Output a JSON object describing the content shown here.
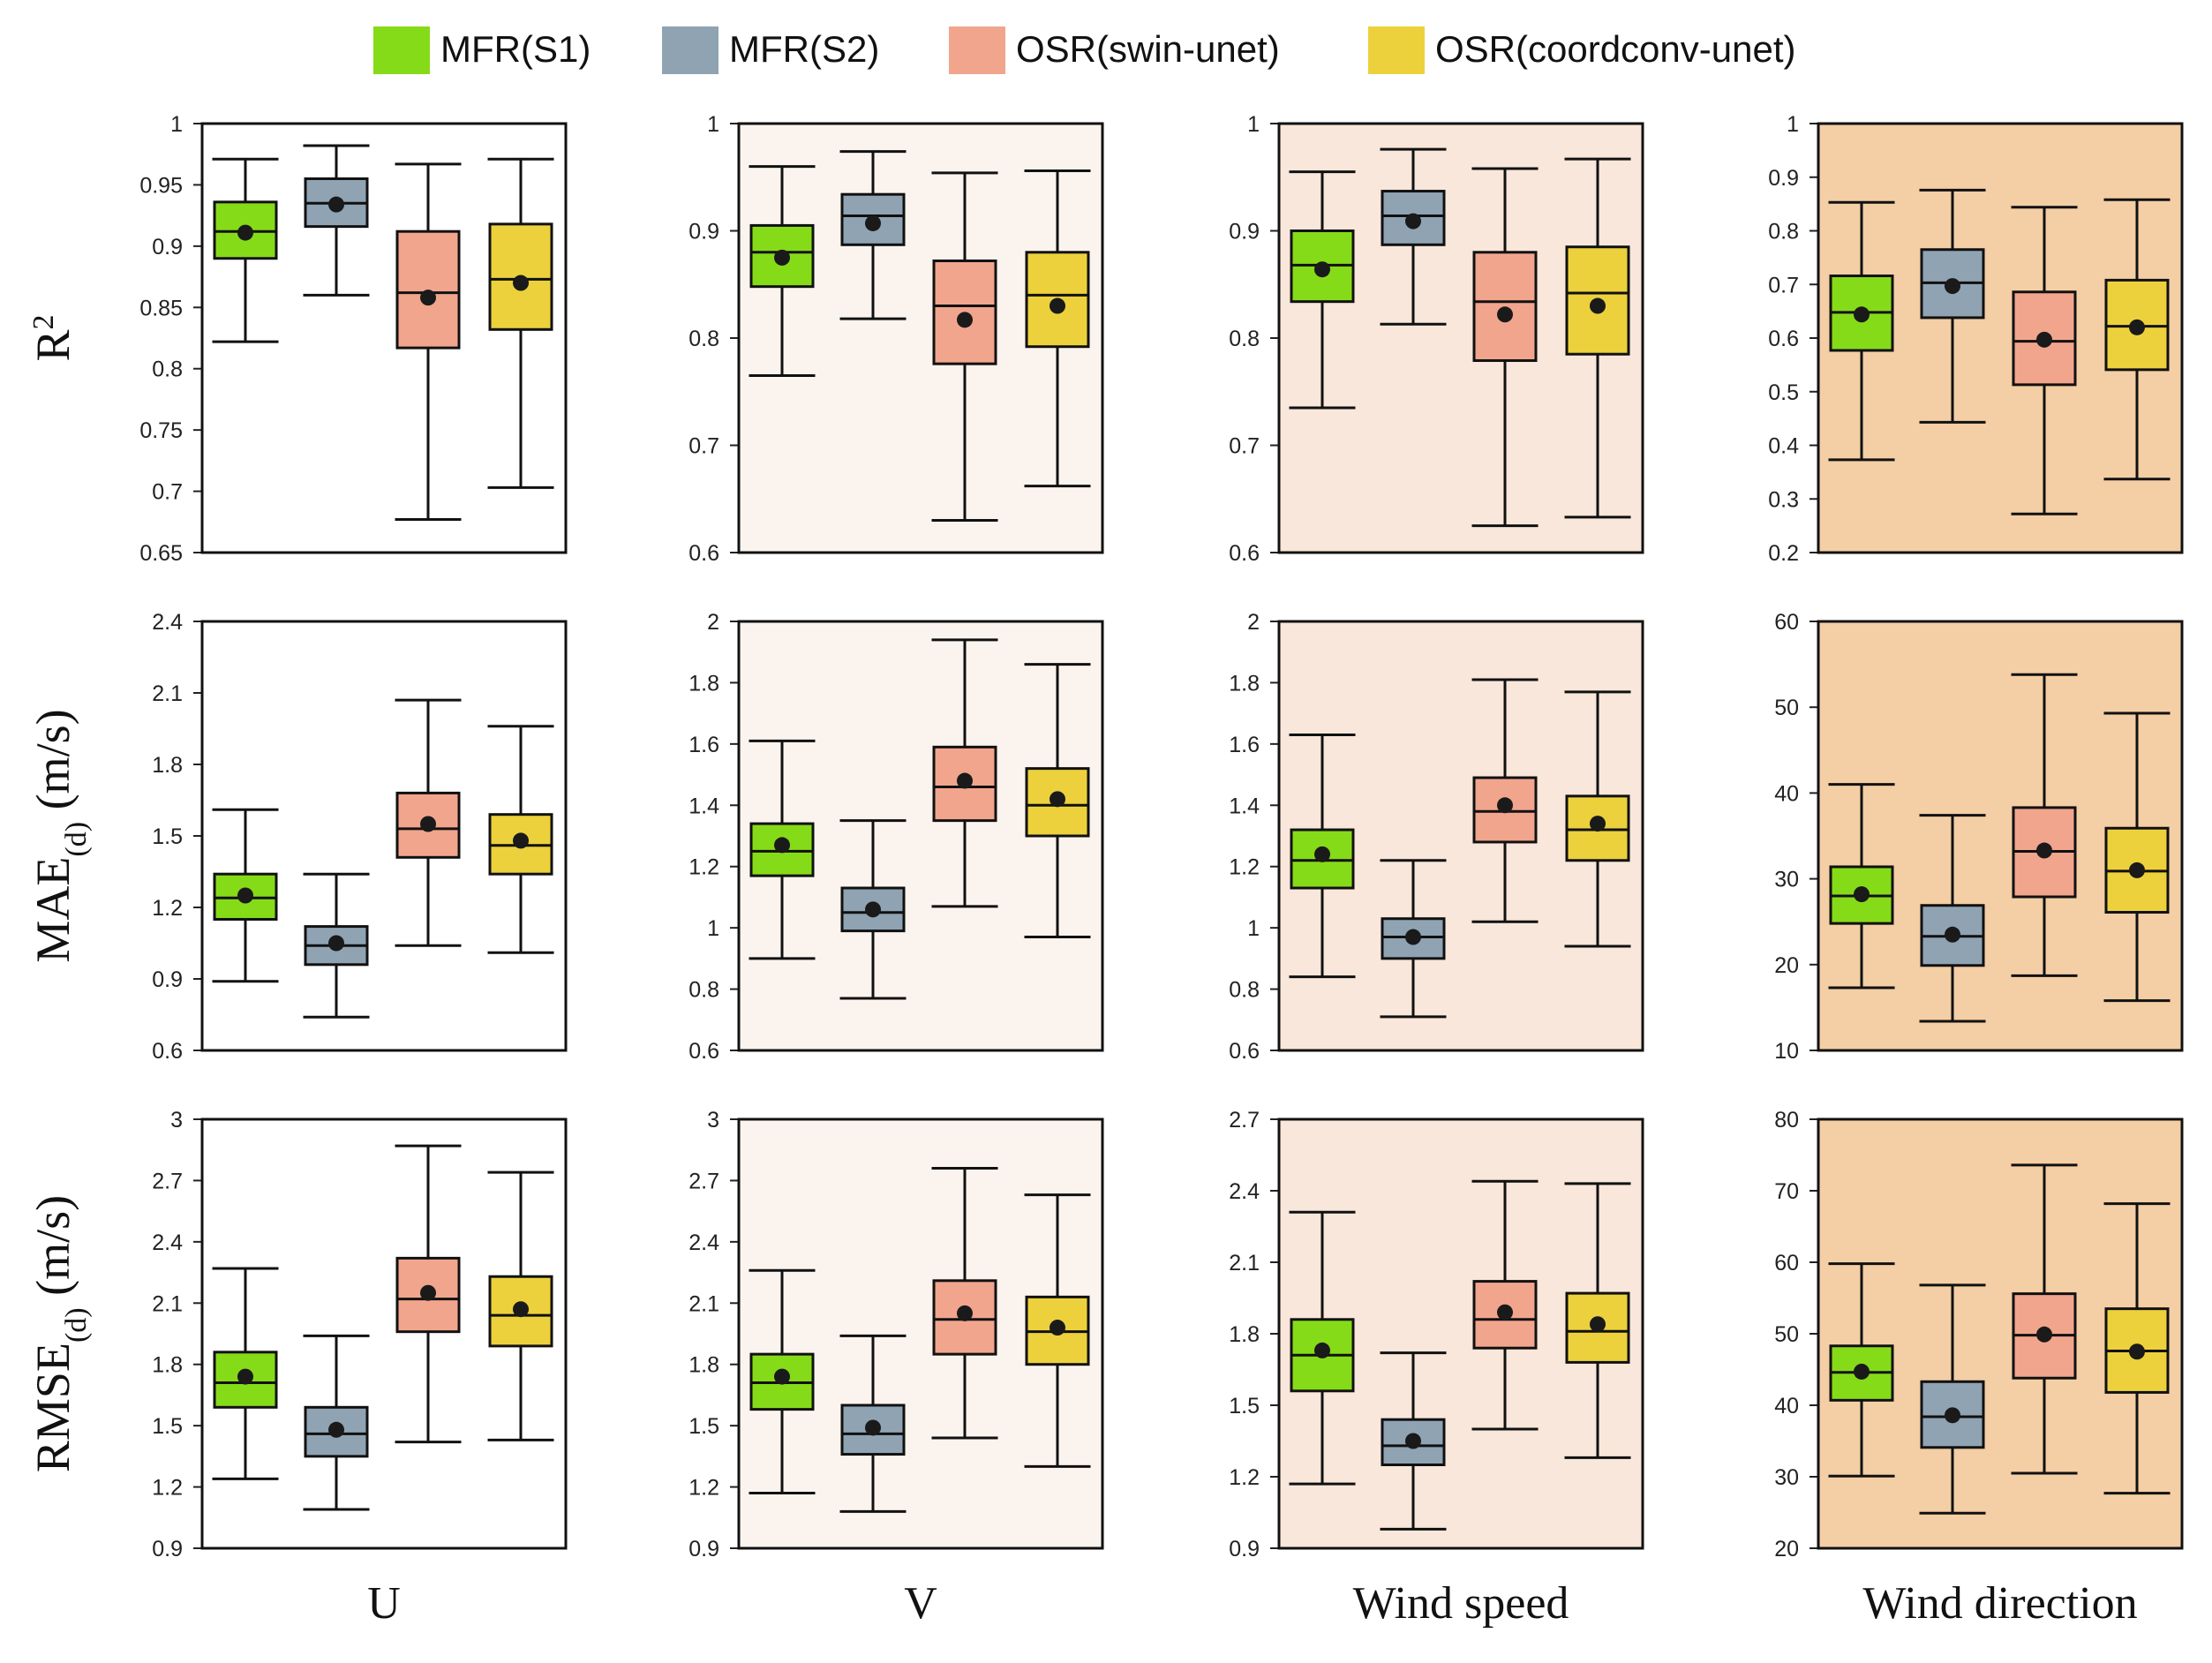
{
  "chart_data": {
    "type": "box",
    "legend": {
      "placement": "top-center",
      "entries": [
        "MFR(S1)",
        "MFR(S2)",
        "OSR(swin-unet)",
        "OSR(coordconv-unet)"
      ]
    },
    "series_colors": [
      "#86db18",
      "#8fa3b3",
      "#f2a58d",
      "#ecd13c"
    ],
    "panel_backgrounds": [
      "#ffffff",
      "#fbf4ee",
      "#f8e7da",
      "#f4cea4"
    ],
    "rows": [
      {
        "label": "R",
        "label_sup": "2",
        "label_sub": "",
        "label_unit": ""
      },
      {
        "label": "MAE",
        "label_sup": "",
        "label_sub": "(d)",
        "label_unit": " (m/s)"
      },
      {
        "label": "RMSE",
        "label_sup": "",
        "label_sub": "(d)",
        "label_unit": " (m/s)"
      }
    ],
    "columns": [
      "U",
      "V",
      "Wind speed",
      "Wind direction"
    ],
    "panels": [
      {
        "row": 0,
        "col": 0,
        "ylim": [
          0.65,
          1
        ],
        "ticks": [
          0.65,
          0.7,
          0.75,
          0.8,
          0.85,
          0.9,
          0.95,
          1
        ],
        "tick_labels": [
          "0.65",
          "0.7",
          "0.75",
          "0.8",
          "0.85",
          "0.9",
          "0.95",
          "1"
        ],
        "boxes": [
          {
            "whislo": 0.822,
            "q1": 0.89,
            "med": 0.912,
            "q3": 0.936,
            "whishi": 0.971,
            "mean": 0.911
          },
          {
            "whislo": 0.86,
            "q1": 0.916,
            "med": 0.935,
            "q3": 0.955,
            "whishi": 0.982,
            "mean": 0.934
          },
          {
            "whislo": 0.677,
            "q1": 0.817,
            "med": 0.862,
            "q3": 0.912,
            "whishi": 0.967,
            "mean": 0.858
          },
          {
            "whislo": 0.703,
            "q1": 0.832,
            "med": 0.873,
            "q3": 0.918,
            "whishi": 0.971,
            "mean": 0.87
          }
        ]
      },
      {
        "row": 0,
        "col": 1,
        "ylim": [
          0.6,
          1
        ],
        "ticks": [
          0.6,
          0.7,
          0.8,
          0.9,
          1
        ],
        "tick_labels": [
          "0.6",
          "0.7",
          "0.8",
          "0.9",
          "1"
        ],
        "boxes": [
          {
            "whislo": 0.765,
            "q1": 0.848,
            "med": 0.88,
            "q3": 0.905,
            "whishi": 0.96,
            "mean": 0.875
          },
          {
            "whislo": 0.818,
            "q1": 0.887,
            "med": 0.914,
            "q3": 0.934,
            "whishi": 0.974,
            "mean": 0.907
          },
          {
            "whislo": 0.63,
            "q1": 0.776,
            "med": 0.83,
            "q3": 0.872,
            "whishi": 0.954,
            "mean": 0.817
          },
          {
            "whislo": 0.662,
            "q1": 0.792,
            "med": 0.84,
            "q3": 0.88,
            "whishi": 0.956,
            "mean": 0.83
          }
        ]
      },
      {
        "row": 0,
        "col": 2,
        "ylim": [
          0.6,
          1
        ],
        "ticks": [
          0.6,
          0.7,
          0.8,
          0.9,
          1
        ],
        "tick_labels": [
          "0.6",
          "0.7",
          "0.8",
          "0.9",
          "1"
        ],
        "boxes": [
          {
            "whislo": 0.735,
            "q1": 0.834,
            "med": 0.868,
            "q3": 0.9,
            "whishi": 0.955,
            "mean": 0.864
          },
          {
            "whislo": 0.813,
            "q1": 0.887,
            "med": 0.914,
            "q3": 0.937,
            "whishi": 0.976,
            "mean": 0.909
          },
          {
            "whislo": 0.625,
            "q1": 0.779,
            "med": 0.834,
            "q3": 0.88,
            "whishi": 0.958,
            "mean": 0.822
          },
          {
            "whislo": 0.633,
            "q1": 0.785,
            "med": 0.842,
            "q3": 0.885,
            "whishi": 0.967,
            "mean": 0.83
          }
        ]
      },
      {
        "row": 0,
        "col": 3,
        "ylim": [
          0.2,
          1
        ],
        "ticks": [
          0.2,
          0.3,
          0.4,
          0.5,
          0.6,
          0.7,
          0.8,
          0.9,
          1
        ],
        "tick_labels": [
          "0.2",
          "0.3",
          "0.4",
          "0.5",
          "0.6",
          "0.7",
          "0.8",
          "0.9",
          "1"
        ],
        "boxes": [
          {
            "whislo": 0.373,
            "q1": 0.577,
            "med": 0.648,
            "q3": 0.716,
            "whishi": 0.853,
            "mean": 0.644
          },
          {
            "whislo": 0.443,
            "q1": 0.638,
            "med": 0.703,
            "q3": 0.765,
            "whishi": 0.876,
            "mean": 0.697
          },
          {
            "whislo": 0.272,
            "q1": 0.513,
            "med": 0.594,
            "q3": 0.686,
            "whishi": 0.844,
            "mean": 0.597
          },
          {
            "whislo": 0.337,
            "q1": 0.541,
            "med": 0.622,
            "q3": 0.708,
            "whishi": 0.858,
            "mean": 0.62
          }
        ]
      },
      {
        "row": 1,
        "col": 0,
        "ylim": [
          0.6,
          2.4
        ],
        "ticks": [
          0.6,
          0.9,
          1.2,
          1.5,
          1.8,
          2.1,
          2.4
        ],
        "tick_labels": [
          "0.6",
          "0.9",
          "1.2",
          "1.5",
          "1.8",
          "2.1",
          "2.4"
        ],
        "boxes": [
          {
            "whislo": 0.89,
            "q1": 1.15,
            "med": 1.24,
            "q3": 1.34,
            "whishi": 1.61,
            "mean": 1.25
          },
          {
            "whislo": 0.74,
            "q1": 0.96,
            "med": 1.04,
            "q3": 1.12,
            "whishi": 1.34,
            "mean": 1.05
          },
          {
            "whislo": 1.04,
            "q1": 1.41,
            "med": 1.53,
            "q3": 1.68,
            "whishi": 2.07,
            "mean": 1.55
          },
          {
            "whislo": 1.01,
            "q1": 1.34,
            "med": 1.46,
            "q3": 1.59,
            "whishi": 1.96,
            "mean": 1.48
          }
        ]
      },
      {
        "row": 1,
        "col": 1,
        "ylim": [
          0.6,
          2
        ],
        "ticks": [
          0.6,
          0.8,
          1,
          1.2,
          1.4,
          1.6,
          1.8,
          2
        ],
        "tick_labels": [
          "0.6",
          "0.8",
          "1",
          "1.2",
          "1.4",
          "1.6",
          "1.8",
          "2"
        ],
        "boxes": [
          {
            "whislo": 0.9,
            "q1": 1.17,
            "med": 1.25,
            "q3": 1.34,
            "whishi": 1.61,
            "mean": 1.27
          },
          {
            "whislo": 0.77,
            "q1": 0.99,
            "med": 1.05,
            "q3": 1.13,
            "whishi": 1.35,
            "mean": 1.06
          },
          {
            "whislo": 1.07,
            "q1": 1.35,
            "med": 1.46,
            "q3": 1.59,
            "whishi": 1.94,
            "mean": 1.48
          },
          {
            "whislo": 0.97,
            "q1": 1.3,
            "med": 1.4,
            "q3": 1.52,
            "whishi": 1.86,
            "mean": 1.42
          }
        ]
      },
      {
        "row": 1,
        "col": 2,
        "ylim": [
          0.6,
          2
        ],
        "ticks": [
          0.6,
          0.8,
          1,
          1.2,
          1.4,
          1.6,
          1.8,
          2
        ],
        "tick_labels": [
          "0.6",
          "0.8",
          "1",
          "1.2",
          "1.4",
          "1.6",
          "1.8",
          "2"
        ],
        "boxes": [
          {
            "whislo": 0.84,
            "q1": 1.13,
            "med": 1.22,
            "q3": 1.32,
            "whishi": 1.63,
            "mean": 1.24
          },
          {
            "whislo": 0.71,
            "q1": 0.9,
            "med": 0.97,
            "q3": 1.03,
            "whishi": 1.22,
            "mean": 0.97
          },
          {
            "whislo": 1.02,
            "q1": 1.28,
            "med": 1.38,
            "q3": 1.49,
            "whishi": 1.81,
            "mean": 1.4
          },
          {
            "whislo": 0.94,
            "q1": 1.22,
            "med": 1.32,
            "q3": 1.43,
            "whishi": 1.77,
            "mean": 1.34
          }
        ]
      },
      {
        "row": 1,
        "col": 3,
        "ylim": [
          10,
          60
        ],
        "ticks": [
          10,
          20,
          30,
          40,
          50,
          60
        ],
        "tick_labels": [
          "10",
          "20",
          "30",
          "40",
          "50",
          "60"
        ],
        "boxes": [
          {
            "whislo": 17.3,
            "q1": 24.8,
            "med": 28.0,
            "q3": 31.4,
            "whishi": 41.0,
            "mean": 28.2
          },
          {
            "whislo": 13.4,
            "q1": 19.9,
            "med": 23.3,
            "q3": 26.9,
            "whishi": 37.4,
            "mean": 23.5
          },
          {
            "whislo": 18.7,
            "q1": 27.9,
            "med": 33.2,
            "q3": 38.3,
            "whishi": 53.8,
            "mean": 33.3
          },
          {
            "whislo": 15.8,
            "q1": 26.1,
            "med": 30.9,
            "q3": 35.9,
            "whishi": 49.3,
            "mean": 31.0
          }
        ]
      },
      {
        "row": 2,
        "col": 0,
        "ylim": [
          0.9,
          3
        ],
        "ticks": [
          0.9,
          1.2,
          1.5,
          1.8,
          2.1,
          2.4,
          2.7,
          3
        ],
        "tick_labels": [
          "0.9",
          "1.2",
          "1.5",
          "1.8",
          "2.1",
          "2.4",
          "2.7",
          "3"
        ],
        "boxes": [
          {
            "whislo": 1.24,
            "q1": 1.59,
            "med": 1.71,
            "q3": 1.86,
            "whishi": 2.27,
            "mean": 1.74
          },
          {
            "whislo": 1.09,
            "q1": 1.35,
            "med": 1.46,
            "q3": 1.59,
            "whishi": 1.94,
            "mean": 1.48
          },
          {
            "whislo": 1.42,
            "q1": 1.96,
            "med": 2.12,
            "q3": 2.32,
            "whishi": 2.87,
            "mean": 2.15
          },
          {
            "whislo": 1.43,
            "q1": 1.89,
            "med": 2.04,
            "q3": 2.23,
            "whishi": 2.74,
            "mean": 2.07
          }
        ]
      },
      {
        "row": 2,
        "col": 1,
        "ylim": [
          0.9,
          3
        ],
        "ticks": [
          0.9,
          1.2,
          1.5,
          1.8,
          2.1,
          2.4,
          2.7,
          3
        ],
        "tick_labels": [
          "0.9",
          "1.2",
          "1.5",
          "1.8",
          "2.1",
          "2.4",
          "2.7",
          "3"
        ],
        "boxes": [
          {
            "whislo": 1.17,
            "q1": 1.58,
            "med": 1.71,
            "q3": 1.85,
            "whishi": 2.26,
            "mean": 1.74
          },
          {
            "whislo": 1.08,
            "q1": 1.36,
            "med": 1.46,
            "q3": 1.6,
            "whishi": 1.94,
            "mean": 1.49
          },
          {
            "whislo": 1.44,
            "q1": 1.85,
            "med": 2.02,
            "q3": 2.21,
            "whishi": 2.76,
            "mean": 2.05
          },
          {
            "whislo": 1.3,
            "q1": 1.8,
            "med": 1.96,
            "q3": 2.13,
            "whishi": 2.63,
            "mean": 1.98
          }
        ]
      },
      {
        "row": 2,
        "col": 2,
        "ylim": [
          0.9,
          2.7
        ],
        "ticks": [
          0.9,
          1.2,
          1.5,
          1.8,
          2.1,
          2.4,
          2.7
        ],
        "tick_labels": [
          "0.9",
          "1.2",
          "1.5",
          "1.8",
          "2.1",
          "2.4",
          "2.7"
        ],
        "boxes": [
          {
            "whislo": 1.17,
            "q1": 1.56,
            "med": 1.71,
            "q3": 1.86,
            "whishi": 2.31,
            "mean": 1.73
          },
          {
            "whislo": 0.98,
            "q1": 1.25,
            "med": 1.33,
            "q3": 1.44,
            "whishi": 1.72,
            "mean": 1.35
          },
          {
            "whislo": 1.4,
            "q1": 1.74,
            "med": 1.86,
            "q3": 2.02,
            "whishi": 2.44,
            "mean": 1.89
          },
          {
            "whislo": 1.28,
            "q1": 1.68,
            "med": 1.81,
            "q3": 1.97,
            "whishi": 2.43,
            "mean": 1.84
          }
        ]
      },
      {
        "row": 2,
        "col": 3,
        "ylim": [
          20,
          80
        ],
        "ticks": [
          20,
          30,
          40,
          50,
          60,
          70,
          80
        ],
        "tick_labels": [
          "20",
          "30",
          "40",
          "50",
          "60",
          "70",
          "80"
        ],
        "boxes": [
          {
            "whislo": 30.1,
            "q1": 40.7,
            "med": 44.6,
            "q3": 48.3,
            "whishi": 59.8,
            "mean": 44.7
          },
          {
            "whislo": 24.9,
            "q1": 34.1,
            "med": 38.4,
            "q3": 43.3,
            "whishi": 56.8,
            "mean": 38.6
          },
          {
            "whislo": 30.5,
            "q1": 43.8,
            "med": 49.8,
            "q3": 55.6,
            "whishi": 73.6,
            "mean": 49.9
          },
          {
            "whislo": 27.7,
            "q1": 41.8,
            "med": 47.6,
            "q3": 53.5,
            "whishi": 68.2,
            "mean": 47.5
          }
        ]
      }
    ]
  }
}
